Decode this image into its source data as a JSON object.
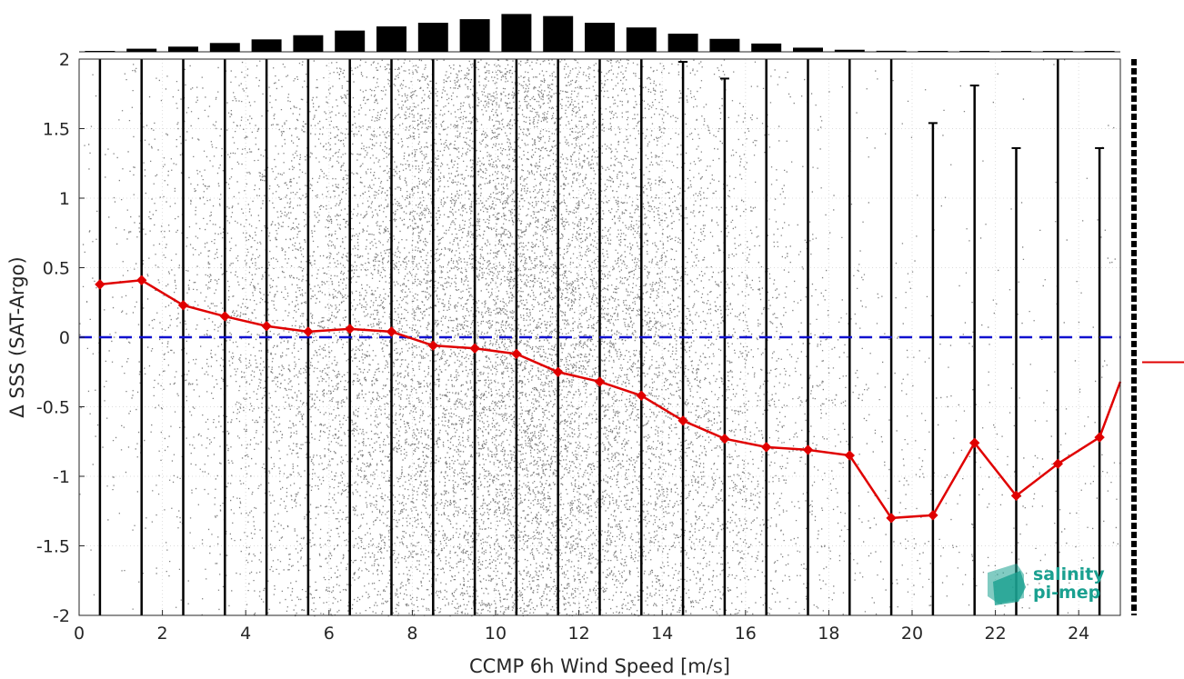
{
  "chart_data": {
    "type": "scatter",
    "title": "",
    "xlabel": "CCMP 6h Wind Speed [m/s]",
    "ylabel": "Δ SSS (SAT-Argo)",
    "xlim": [
      0,
      25
    ],
    "ylim": [
      -2,
      2
    ],
    "x_ticks": [
      "0",
      "2",
      "4",
      "6",
      "8",
      "10",
      "12",
      "14",
      "16",
      "18",
      "20",
      "22",
      "24"
    ],
    "y_ticks": [
      "2",
      "1.5",
      "1",
      "0.5",
      "0",
      "-0.5",
      "-1",
      "-1.5",
      "-2"
    ],
    "grid": true,
    "reference_line": {
      "y": 0,
      "style": "dashed",
      "color": "#1010d0"
    },
    "bins": [
      0.5,
      1.5,
      2.5,
      3.5,
      4.5,
      5.5,
      6.5,
      7.5,
      8.5,
      9.5,
      10.5,
      11.5,
      12.5,
      13.5,
      14.5,
      15.5,
      16.5,
      17.5,
      18.5,
      19.5,
      20.5,
      21.5,
      22.5,
      23.5,
      24.5
    ],
    "series": [
      {
        "values": [
          0.38,
          0.41,
          0.23,
          0.15,
          0.08,
          0.04,
          0.06,
          0.04,
          -0.06,
          -0.08,
          -0.12,
          -0.25,
          -0.32,
          -0.42,
          -0.6,
          -0.73,
          -0.79,
          -0.81,
          -0.85,
          -1.3,
          -1.28,
          -0.76,
          -1.14,
          -0.91,
          -0.72
        ],
        "extend_to": {
          "x": 25,
          "y": -0.32
        },
        "color": "#e00000",
        "marker": "diamond"
      }
    ],
    "error_bar_top": [
      2.5,
      2.5,
      2.5,
      2.5,
      2.5,
      2.5,
      2.5,
      2.5,
      2.5,
      2.5,
      2.5,
      2.5,
      2.5,
      2.5,
      1.98,
      1.86,
      2.5,
      2.5,
      2.5,
      2.5,
      1.54,
      1.81,
      1.36,
      2.5,
      1.36
    ],
    "histogram_top": [
      0.015,
      0.06,
      0.1,
      0.17,
      0.24,
      0.32,
      0.41,
      0.49,
      0.56,
      0.63,
      0.73,
      0.69,
      0.56,
      0.47,
      0.35,
      0.25,
      0.16,
      0.08,
      0.04,
      0.02,
      0.015,
      0.01,
      0.008,
      0.005,
      0.004
    ],
    "right_marker_y": -0.18,
    "colors": {
      "scatter": "#808080",
      "errorbar": "#000000",
      "mean": "#e00000",
      "zero": "#1010d0"
    }
  },
  "logo": {
    "line1": "salinity",
    "line2": "pi-mep",
    "color": "#1aa090",
    "icon": "salinity-pimep-logo-icon"
  }
}
